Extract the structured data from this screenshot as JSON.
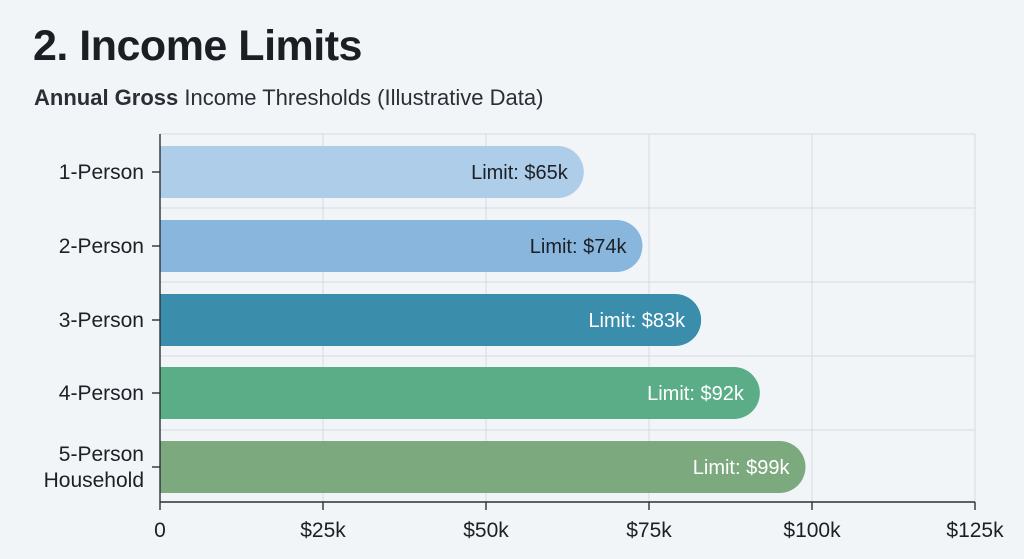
{
  "header": {
    "title": "2. Income Limits",
    "subtitle_strong": "Annual Gross",
    "subtitle_rest": " Income Thresholds (Illustrative Data)"
  },
  "chart_data": {
    "type": "bar",
    "orientation": "horizontal",
    "title": "2. Income Limits",
    "subtitle": "Annual Gross Income Thresholds (Illustrative Data)",
    "categories": [
      [
        "1-Person"
      ],
      [
        "2-Person"
      ],
      [
        "3-Person"
      ],
      [
        "4-Person"
      ],
      [
        "5-Person",
        "Household"
      ]
    ],
    "values": [
      65,
      74,
      83,
      92,
      99
    ],
    "value_unit": "thousand USD",
    "data_labels": [
      "Limit: $65k",
      "Limit: $74k",
      "Limit: $83k",
      "Limit: $92k",
      "Limit: $99k"
    ],
    "bar_colors": [
      "#aecde8",
      "#88b6dc",
      "#3a8eab",
      "#5aad87",
      "#7caa7e"
    ],
    "label_colors": [
      "#1c2026",
      "#1c2026",
      "#ffffff",
      "#ffffff",
      "#ffffff"
    ],
    "xlim": [
      0,
      125
    ],
    "xticks": [
      0,
      25,
      50,
      75,
      100,
      125
    ],
    "xtick_labels": [
      "0",
      "$25k",
      "$50k",
      "$75k",
      "$100k",
      "$125k"
    ],
    "xlabel": "",
    "ylabel": "",
    "grid": true,
    "legend": false
  }
}
